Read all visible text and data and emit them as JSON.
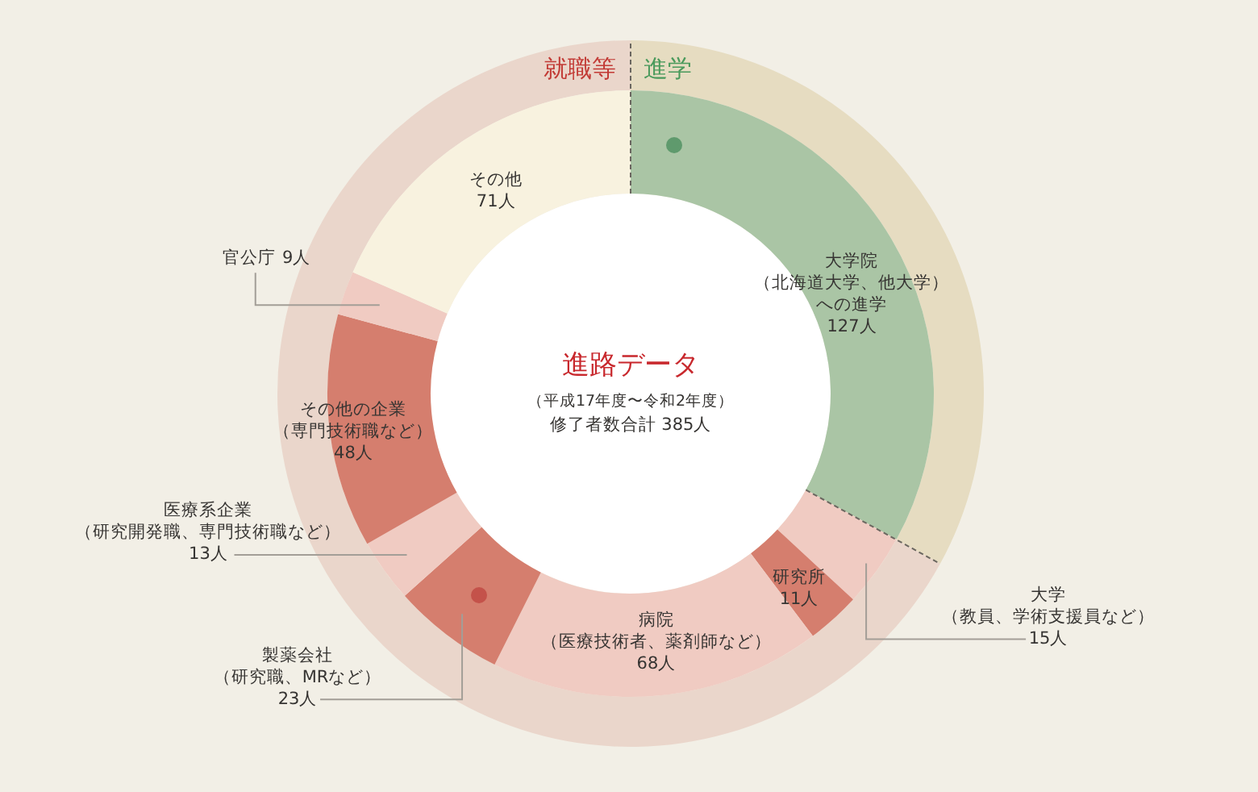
{
  "chart_data": [
    {
      "type": "donut",
      "title": "進路データ",
      "subtitle": "（平成17年度〜令和2年度）",
      "annotations": [
        "修了者数合計 385人"
      ],
      "categories": [
        "大学院（北海道大学、他大学）への進学",
        "大学（教員、学術支援員など）",
        "研究所",
        "病院（医療技術者、薬剤師など）",
        "製薬会社（研究職、MRなど）",
        "医療系企業（研究開発職、専門技術職など）",
        "その他の企業（専門技術職など）",
        "官公庁",
        "その他"
      ],
      "values": [
        127,
        15,
        11,
        68,
        23,
        13,
        48,
        9,
        71
      ],
      "value_labels": [
        "127人",
        "15人",
        "11人",
        "68人",
        "23人",
        "13人",
        "48人",
        "9人",
        "71人"
      ],
      "colors": [
        "#aac5a5",
        "#f0cbc2",
        "#d57e6e",
        "#f0cbc2",
        "#d57e6e",
        "#f0cbc2",
        "#d57e6e",
        "#f0cbc2",
        "#f8f2df"
      ]
    },
    {
      "type": "donut",
      "categories": [
        "進学",
        "就職等"
      ],
      "values": [
        33,
        67
      ],
      "colors": [
        "#e6dcc1",
        "#ead6cb"
      ]
    }
  ]
}
